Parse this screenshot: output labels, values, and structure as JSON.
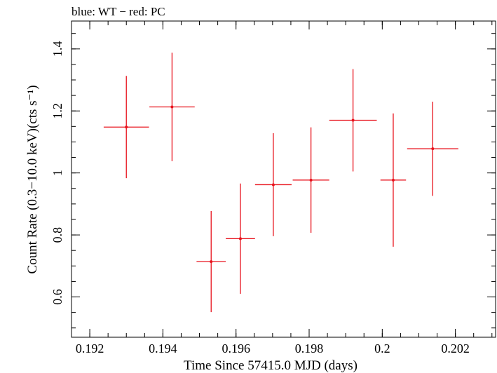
{
  "chart_data": {
    "type": "scatter",
    "title": "blue: WT − red: PC",
    "xlabel": "Time Since 57415.0 MJD (days)",
    "ylabel": "Count Rate (0.3−10.0 keV)(cts s⁻¹)",
    "xlim": [
      0.1915,
      0.2031
    ],
    "ylim": [
      0.47,
      1.49
    ],
    "xticks": [
      0.192,
      0.194,
      0.196,
      0.198,
      0.2,
      0.202
    ],
    "xtick_labels": [
      "0.192",
      "0.194",
      "0.196",
      "0.198",
      "0.2",
      "0.202"
    ],
    "yticks": [
      0.6,
      0.8,
      1.0,
      1.2,
      1.4
    ],
    "ytick_labels": [
      "0.6",
      "0.8",
      "1",
      "1.2",
      "1.4"
    ],
    "grid": false,
    "series": [
      {
        "color": "#e8121c",
        "points": [
          {
            "x": 0.193,
            "xerr": 0.00062,
            "y": 1.148,
            "yerr": 0.165
          },
          {
            "x": 0.19425,
            "xerr": 0.00062,
            "y": 1.213,
            "yerr": 0.175
          },
          {
            "x": 0.19532,
            "xerr": 0.0004,
            "y": 0.714,
            "yerr": 0.163
          },
          {
            "x": 0.19612,
            "xerr": 0.0004,
            "y": 0.788,
            "yerr": 0.178
          },
          {
            "x": 0.19702,
            "xerr": 0.0005,
            "y": 0.962,
            "yerr": 0.166
          },
          {
            "x": 0.19805,
            "xerr": 0.0005,
            "y": 0.977,
            "yerr": 0.17
          },
          {
            "x": 0.1992,
            "xerr": 0.00065,
            "y": 1.17,
            "yerr": 0.165
          },
          {
            "x": 0.2003,
            "xerr": 0.00035,
            "y": 0.977,
            "yerr": 0.215
          },
          {
            "x": 0.20138,
            "xerr": 0.0007,
            "y": 1.078,
            "yerr": 0.152
          }
        ]
      }
    ]
  }
}
